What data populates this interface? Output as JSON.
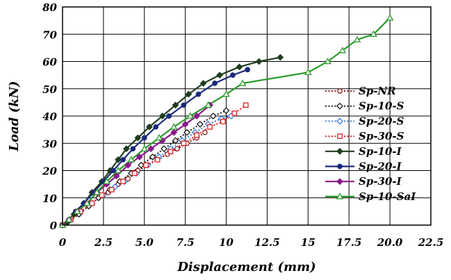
{
  "chart_data": {
    "type": "line",
    "xlabel": "Displacement (mm)",
    "ylabel": "Load (kN)",
    "xlim": [
      0,
      22.5
    ],
    "ylim": [
      0,
      80
    ],
    "xticks": [
      "0",
      "2.5",
      "5.0",
      "7.5",
      "10",
      "12.5",
      "15",
      "17.5",
      "20.0",
      "22.5"
    ],
    "yticks": [
      "0",
      "10",
      "20",
      "30",
      "40",
      "50",
      "60",
      "70",
      "80"
    ],
    "grid": true,
    "legend_position": "right",
    "series": [
      {
        "name": "Sp-NR",
        "color": "#8b1a1a",
        "dash": "dotted",
        "marker": "circle-open",
        "points": [
          [
            0,
            0
          ],
          [
            0.5,
            2
          ],
          [
            1,
            4
          ],
          [
            1.6,
            7
          ],
          [
            2.2,
            10
          ],
          [
            2.8,
            12
          ],
          [
            3.4,
            15
          ],
          [
            4,
            17
          ],
          [
            4.6,
            20
          ],
          [
            5.2,
            22
          ],
          [
            5.8,
            24
          ],
          [
            6.4,
            26
          ],
          [
            7,
            28
          ],
          [
            7.6,
            30
          ],
          [
            8.2,
            32
          ],
          [
            8.7,
            34
          ]
        ]
      },
      {
        "name": "Sp-10-S",
        "color": "#1a1a1a",
        "dash": "dotted",
        "marker": "diamond-open",
        "points": [
          [
            0,
            0
          ],
          [
            0.5,
            2
          ],
          [
            1,
            4
          ],
          [
            1.6,
            7
          ],
          [
            2.2,
            10
          ],
          [
            2.9,
            13
          ],
          [
            3.5,
            16
          ],
          [
            4.2,
            19
          ],
          [
            4.8,
            22
          ],
          [
            5.5,
            25
          ],
          [
            6.2,
            28
          ],
          [
            6.9,
            31
          ],
          [
            7.6,
            34
          ],
          [
            8.4,
            37
          ],
          [
            9.2,
            40
          ],
          [
            10,
            42
          ]
        ]
      },
      {
        "name": "Sp-20-S",
        "color": "#3a7bd5",
        "dash": "dotted",
        "marker": "diamond-open",
        "points": [
          [
            0,
            0
          ],
          [
            0.5,
            2
          ],
          [
            1.1,
            5
          ],
          [
            1.8,
            8
          ],
          [
            2.5,
            11
          ],
          [
            3.2,
            14
          ],
          [
            3.8,
            16
          ],
          [
            4.5,
            19
          ],
          [
            5.2,
            22
          ],
          [
            5.9,
            25
          ],
          [
            6.6,
            28
          ],
          [
            7.3,
            31
          ],
          [
            8.1,
            34
          ],
          [
            8.9,
            37
          ],
          [
            9.7,
            39
          ],
          [
            10.3,
            40
          ]
        ]
      },
      {
        "name": "Sp-30-S",
        "color": "#e02020",
        "dash": "dotted",
        "marker": "square-open",
        "points": [
          [
            0,
            0
          ],
          [
            0.5,
            2
          ],
          [
            1.1,
            5
          ],
          [
            1.8,
            8
          ],
          [
            2.4,
            11
          ],
          [
            3,
            13
          ],
          [
            3.7,
            16
          ],
          [
            4.4,
            19
          ],
          [
            5.1,
            22
          ],
          [
            5.8,
            24
          ],
          [
            6.6,
            27
          ],
          [
            7.4,
            30
          ],
          [
            8.2,
            33
          ],
          [
            9,
            36
          ],
          [
            9.8,
            38
          ],
          [
            10.5,
            41
          ],
          [
            11.2,
            44
          ]
        ]
      },
      {
        "name": "Sp-10-I",
        "color": "#1f3d1f",
        "dash": "solid",
        "marker": "diamond-filled",
        "points": [
          [
            0,
            0
          ],
          [
            0.3,
            1
          ],
          [
            0.7,
            4
          ],
          [
            1.3,
            8
          ],
          [
            1.8,
            12
          ],
          [
            2.4,
            16
          ],
          [
            2.9,
            20
          ],
          [
            3.4,
            24
          ],
          [
            3.9,
            28
          ],
          [
            4.6,
            32
          ],
          [
            5.3,
            36
          ],
          [
            6.1,
            40
          ],
          [
            6.9,
            44
          ],
          [
            7.7,
            48
          ],
          [
            8.6,
            52
          ],
          [
            9.6,
            55
          ],
          [
            10.8,
            58
          ],
          [
            12,
            60
          ],
          [
            13.3,
            61.5
          ]
        ]
      },
      {
        "name": "Sp-20-I",
        "color": "#1a2a7a",
        "dash": "solid",
        "marker": "circle-filled",
        "points": [
          [
            0,
            0
          ],
          [
            0.4,
            2
          ],
          [
            0.8,
            5
          ],
          [
            1.3,
            8
          ],
          [
            1.9,
            12
          ],
          [
            2.5,
            16
          ],
          [
            3.1,
            20
          ],
          [
            3.7,
            24
          ],
          [
            4.3,
            28
          ],
          [
            5,
            32
          ],
          [
            5.7,
            36
          ],
          [
            6.5,
            40
          ],
          [
            7.4,
            44
          ],
          [
            8.3,
            48
          ],
          [
            9.3,
            52
          ],
          [
            10.4,
            55
          ],
          [
            11.3,
            57
          ]
        ]
      },
      {
        "name": "Sp-30-I",
        "color": "#8a1a8a",
        "dash": "solid",
        "marker": "diamond-filled",
        "points": [
          [
            0,
            0
          ],
          [
            0.4,
            2
          ],
          [
            0.9,
            5
          ],
          [
            1.5,
            8
          ],
          [
            2.1,
            12
          ],
          [
            2.7,
            15
          ],
          [
            3.3,
            18
          ],
          [
            4,
            22
          ],
          [
            4.7,
            25
          ],
          [
            5.4,
            28
          ],
          [
            6.1,
            31
          ],
          [
            6.8,
            34
          ],
          [
            7.5,
            37
          ],
          [
            8.2,
            40
          ],
          [
            9,
            44
          ]
        ]
      },
      {
        "name": "Sp-10-SaI",
        "color": "#2a9a2a",
        "dash": "solid",
        "marker": "triangle-open",
        "points": [
          [
            0,
            0
          ],
          [
            0.4,
            2
          ],
          [
            0.9,
            5
          ],
          [
            1.5,
            8
          ],
          [
            2.1,
            12
          ],
          [
            2.7,
            16
          ],
          [
            3.4,
            20
          ],
          [
            4.2,
            24
          ],
          [
            5,
            28
          ],
          [
            5.9,
            32
          ],
          [
            6.8,
            36
          ],
          [
            7.8,
            40
          ],
          [
            8.9,
            44
          ],
          [
            10,
            48
          ],
          [
            11,
            52
          ],
          [
            15,
            56
          ],
          [
            16.2,
            60
          ],
          [
            17.1,
            64
          ],
          [
            18,
            68
          ],
          [
            19,
            70
          ],
          [
            20,
            76
          ]
        ]
      }
    ]
  }
}
